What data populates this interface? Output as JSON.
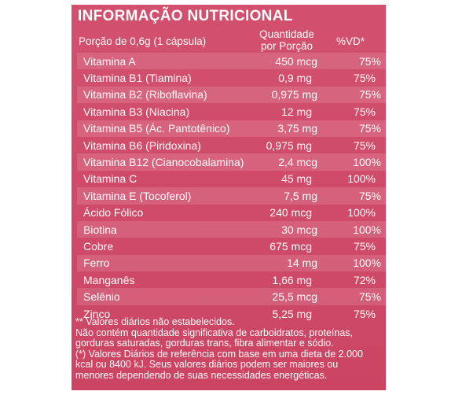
{
  "title": "INFORMAÇÃO NUTRICIONAL",
  "header": {
    "portion": "Porção de 0,6g   (1 cápsula)",
    "qty_line1": "Quantidade",
    "qty_line2": "por Porção",
    "vd": "%VD*"
  },
  "rows": [
    {
      "name": "Vitamina A",
      "qty": "450 mcg",
      "vd": "75%"
    },
    {
      "name": "Vitamina B1 (Tiamina)",
      "qty": "0,9 mg",
      "vd": "75%"
    },
    {
      "name": "Vitamina B2 (Riboflavina)",
      "qty": "0,975 mg",
      "vd": "75%"
    },
    {
      "name": "Vitamina B3 (Niacina)",
      "qty": "12 mg",
      "vd": "75%"
    },
    {
      "name": "Vitamina B5 (Ác. Pantotênico)",
      "qty": "3,75 mg",
      "vd": "75%"
    },
    {
      "name": "Vitamina B6 (Piridoxina)",
      "qty": "0,975 mg",
      "vd": "75%"
    },
    {
      "name": "Vitamina B12 (Cianocobalamina)",
      "qty": "2,4 mcg",
      "vd": "100%"
    },
    {
      "name": "Vitamina C",
      "qty": "45 mg",
      "vd": "100%"
    },
    {
      "name": "Vitamina E (Tocoferol)",
      "qty": "7,5 mg",
      "vd": "75%"
    },
    {
      "name": "Ácido Fólico",
      "qty": "240 mcg",
      "vd": "100%"
    },
    {
      "name": "Biotina",
      "qty": "30 mcg",
      "vd": "100%"
    },
    {
      "name": "Cobre",
      "qty": "675 mcg",
      "vd": "75%"
    },
    {
      "name": "Ferro",
      "qty": "14 mg",
      "vd": "100%"
    },
    {
      "name": "Manganês",
      "qty": "1,66 mg",
      "vd": "72%"
    },
    {
      "name": "Selênio",
      "qty": "25,5 mcg",
      "vd": "75%"
    },
    {
      "name": "Zinco",
      "qty": "5,25 mg",
      "vd": "75%"
    }
  ],
  "footnotes": [
    "** Valores  diários  não estabelecidos.",
    "Não contém quantidade significativa de carboidratos, proteínas,",
    "gorduras saturadas, gorduras trans, fibra alimentar e sódio.",
    "(*) Valores Diários de referência com base em uma dieta de 2.000",
    "kcal ou 8400 kJ. Seus valores diários podem ser maiores ou",
    "menores dependendo de suas necessidades energéticas."
  ]
}
